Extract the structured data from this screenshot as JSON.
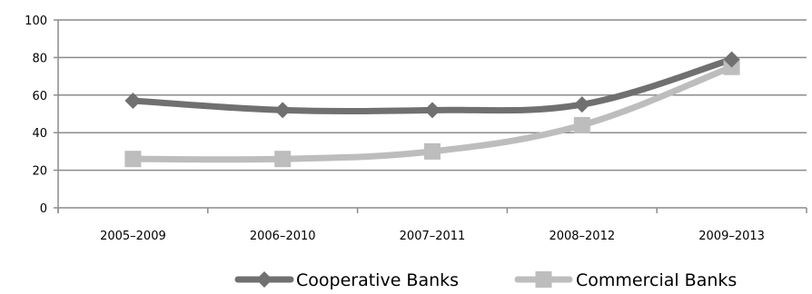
{
  "chart_data": {
    "type": "line",
    "title": "",
    "xlabel": "",
    "ylabel": "",
    "categories": [
      "2005–2009",
      "2006–2010",
      "2007–2011",
      "2008–2012",
      "2009–2013"
    ],
    "ylim": [
      0,
      100
    ],
    "yticks": [
      0,
      20,
      40,
      60,
      80,
      100
    ],
    "grid": true,
    "legend_position": "bottom",
    "series": [
      {
        "name": "Cooperative Banks",
        "values": [
          57,
          52,
          52,
          55,
          79
        ],
        "color": "#707070",
        "marker": "diamond"
      },
      {
        "name": "Commercial Banks",
        "values": [
          26,
          26,
          30,
          44,
          75
        ],
        "color": "#bdbdbd",
        "marker": "square"
      }
    ]
  }
}
